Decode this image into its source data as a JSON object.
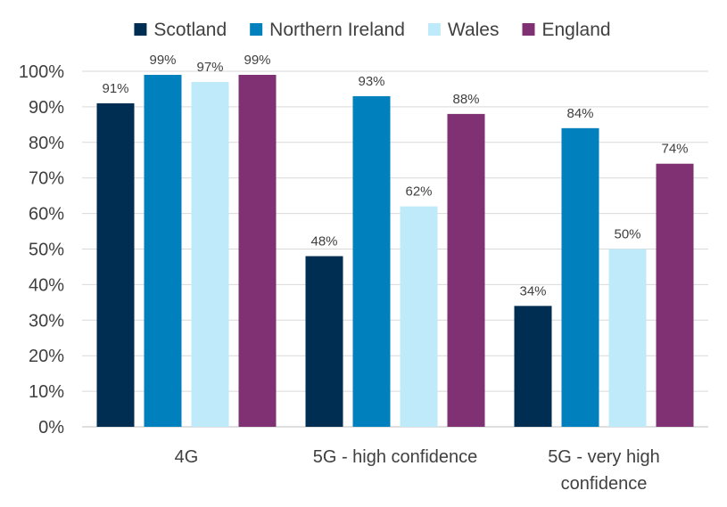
{
  "chart_data": {
    "type": "bar",
    "categories": [
      "4G",
      "5G - high confidence",
      "5G - very high confidence"
    ],
    "category_lines": [
      [
        "4G"
      ],
      [
        "5G - high confidence"
      ],
      [
        "5G - very high",
        "confidence"
      ]
    ],
    "series": [
      {
        "name": "Scotland",
        "color": "#002D52",
        "values": [
          91,
          48,
          34
        ]
      },
      {
        "name": "Northern Ireland",
        "color": "#0081BE",
        "values": [
          99,
          93,
          84
        ]
      },
      {
        "name": "Wales",
        "color": "#BFEAFA",
        "values": [
          97,
          62,
          50
        ]
      },
      {
        "name": "England",
        "color": "#7F3173",
        "values": [
          99,
          88,
          74
        ]
      }
    ],
    "ylim": [
      0,
      100
    ],
    "yticks": [
      0,
      10,
      20,
      30,
      40,
      50,
      60,
      70,
      80,
      90,
      100
    ],
    "tick_suffix": "%",
    "value_suffix": "%",
    "grid": true,
    "legend_position": "top",
    "title": "",
    "xlabel": "",
    "ylabel": ""
  }
}
